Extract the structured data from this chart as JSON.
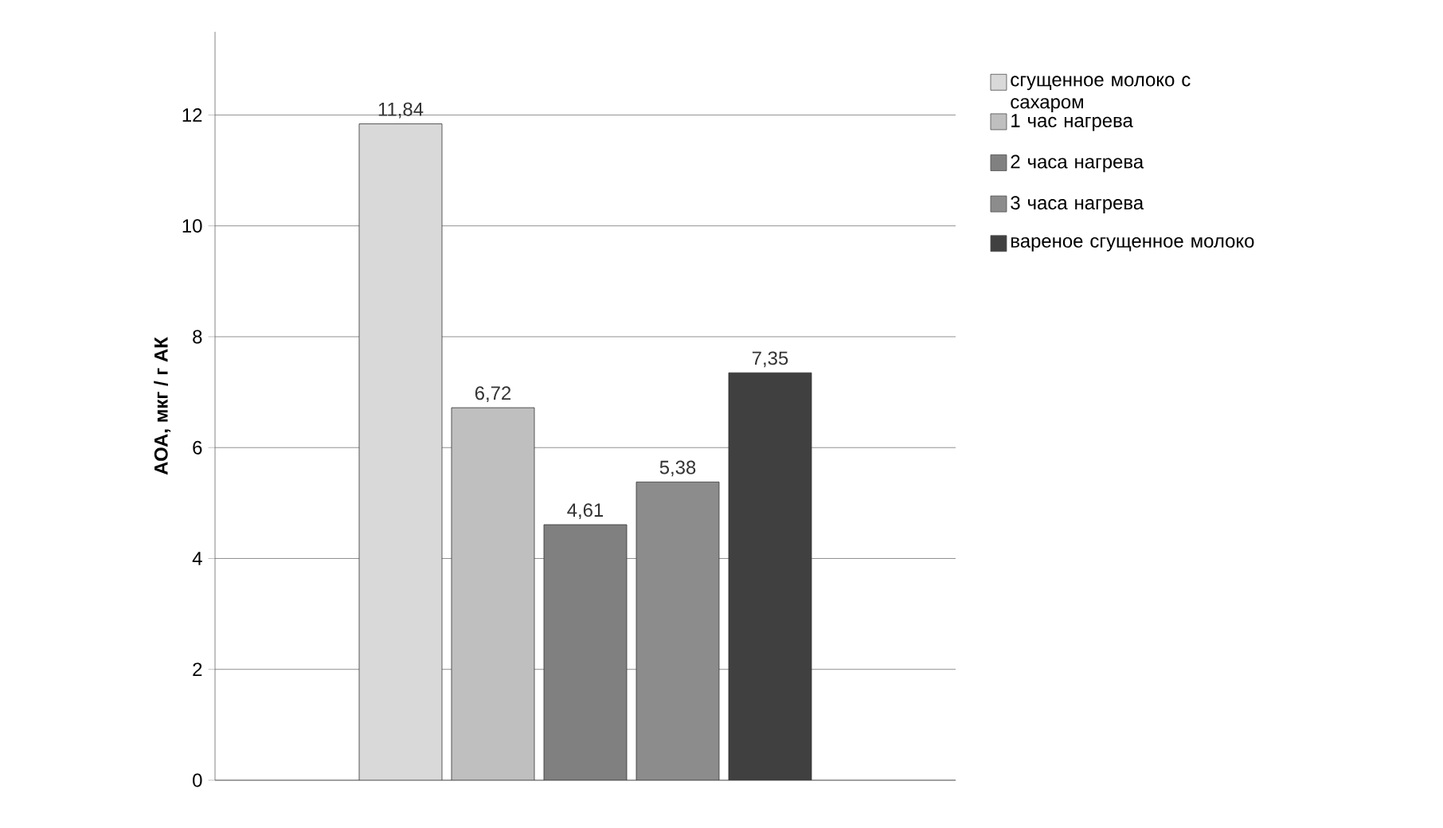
{
  "chart_data": {
    "type": "bar",
    "ylabel": "АОА, мкг / г АК",
    "categories": [
      null
    ],
    "series": [
      {
        "name": "сгущенное молоко с сахаром",
        "color": "#d9d9d9",
        "values": [
          11.84
        ],
        "value_labels": [
          "11,84"
        ]
      },
      {
        "name": "1 час нагрева",
        "color": "#bfbfbf",
        "values": [
          6.72
        ],
        "value_labels": [
          "6,72"
        ]
      },
      {
        "name": "2 часа нагрева",
        "color": "#808080",
        "values": [
          4.61
        ],
        "value_labels": [
          "4,61"
        ]
      },
      {
        "name": "3 часа нагрева",
        "color": "#8c8c8c",
        "values": [
          5.38
        ],
        "value_labels": [
          "5,38"
        ]
      },
      {
        "name": "вареное сгущенное молоко",
        "color": "#404040",
        "values": [
          7.35
        ],
        "value_labels": [
          "7,35"
        ]
      }
    ],
    "ylim": [
      0,
      13.5
    ],
    "yticks": [
      0,
      2,
      4,
      6,
      8,
      10,
      12
    ],
    "grid": "y",
    "legend": "right"
  }
}
